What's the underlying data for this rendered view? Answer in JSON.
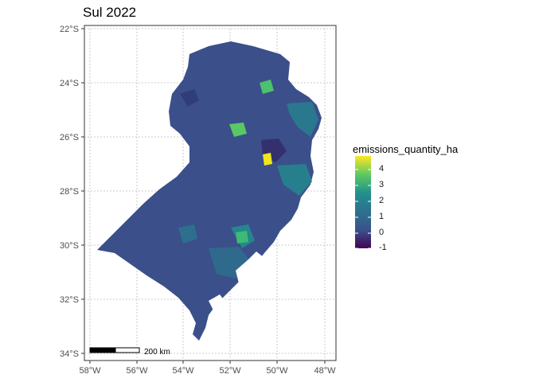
{
  "title": "Sul 2022",
  "legend": {
    "title": "emissions_quantity_ha",
    "labels": [
      "4",
      "3",
      "2",
      "1",
      "0",
      "-1"
    ],
    "colors": [
      "#fde725",
      "#35b779",
      "#21918c",
      "#31688e",
      "#443983",
      "#440154"
    ]
  },
  "axes": {
    "y_ticks": [
      "22°S",
      "24°S",
      "26°S",
      "28°S",
      "30°S",
      "32°S",
      "34°S"
    ],
    "x_ticks": [
      "58°W",
      "56°W",
      "54°W",
      "52°W",
      "50°W",
      "48°W"
    ]
  },
  "scale_bar": {
    "label": "200 km"
  },
  "colors": {
    "base": "#3b4f8a",
    "dark": "#2f3d78",
    "teal": "#2a788e",
    "green": "#4cc26c",
    "yellow": "#f2e51d"
  }
}
